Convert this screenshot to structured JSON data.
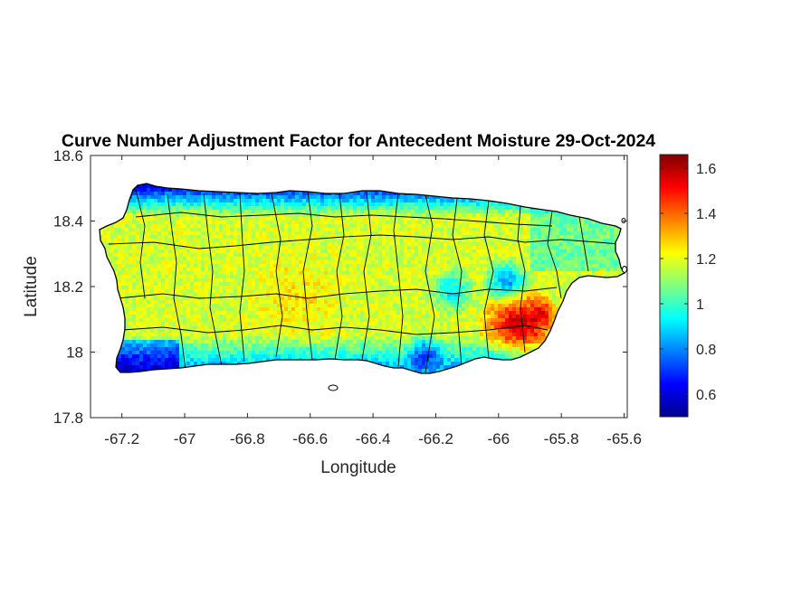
{
  "chart_data": {
    "type": "heatmap",
    "title": "Curve Number Adjustment Factor for Antecedent Moisture 29-Oct-2024",
    "xlabel": "Longitude",
    "ylabel": "Latitude",
    "xlim": [
      -67.3,
      -65.59
    ],
    "ylim": [
      17.8,
      18.6
    ],
    "x_ticks": [
      -67.2,
      -67,
      -66.8,
      -66.6,
      -66.4,
      -66.2,
      -66,
      -65.8,
      -65.6
    ],
    "x_tick_labels": [
      "-67.2",
      "-67",
      "-66.8",
      "-66.6",
      "-66.4",
      "-66.2",
      "-66",
      "-65.8",
      "-65.6"
    ],
    "y_ticks": [
      17.8,
      18,
      18.2,
      18.4,
      18.6
    ],
    "y_tick_labels": [
      "17.8",
      "18",
      "18.2",
      "18.4",
      "18.6"
    ],
    "colormap": "jet",
    "colorbar": {
      "range": [
        0.5,
        1.66
      ],
      "ticks": [
        0.6,
        0.8,
        1,
        1.2,
        1.4,
        1.6
      ],
      "tick_labels": [
        "0.6",
        "0.8",
        "1",
        "1.2",
        "1.4",
        "1.6"
      ]
    },
    "region": "Puerto Rico (municipality boundaries overlaid)",
    "grid": false
  }
}
